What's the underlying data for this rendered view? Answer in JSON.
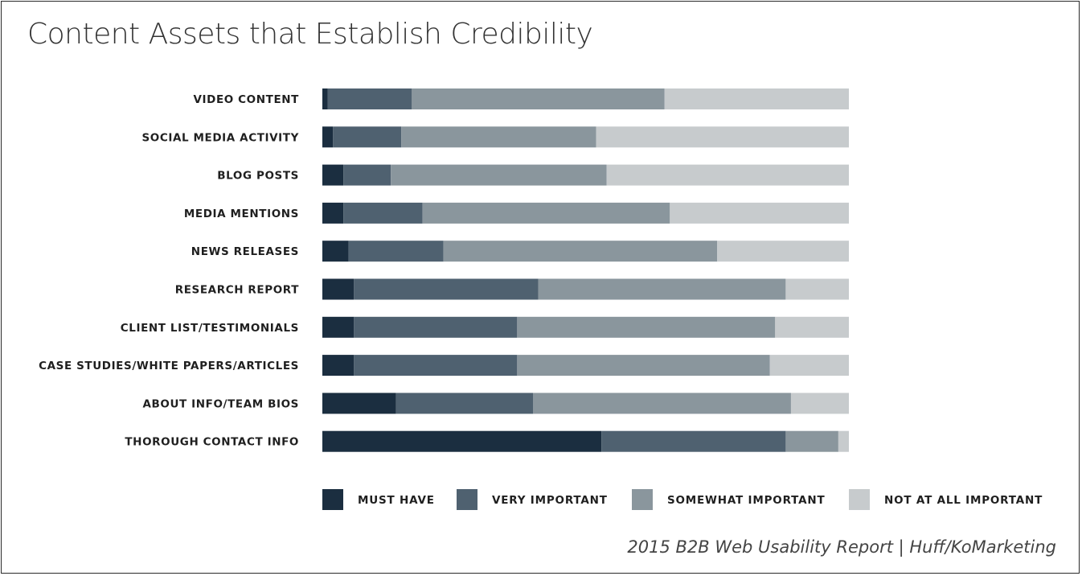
{
  "chart_data": {
    "type": "bar",
    "orientation": "horizontal",
    "stacked": true,
    "title": "Content Assets that Establish Credibility",
    "categories": [
      "VIDEO CONTENT",
      "SOCIAL MEDIA ACTIVITY",
      "BLOG POSTS",
      "MEDIA MENTIONS",
      "NEWS RELEASES",
      "RESEARCH REPORT",
      "CLIENT LIST/TESTIMONIALS",
      "CASE STUDIES/WHITE PAPERS/ARTICLES",
      "ABOUT INFO/TEAM BIOS",
      "THOROUGH CONTACT INFO"
    ],
    "series": [
      {
        "name": "MUST HAVE",
        "color": "#1b2e40",
        "values": [
          1,
          2,
          4,
          4,
          5,
          6,
          6,
          6,
          14,
          53
        ]
      },
      {
        "name": "VERY IMPORTANT",
        "color": "#4f6170",
        "values": [
          16,
          13,
          9,
          15,
          18,
          35,
          31,
          31,
          26,
          35
        ]
      },
      {
        "name": "SOMEWHAT IMPORTANT",
        "color": "#8a969d",
        "values": [
          48,
          37,
          41,
          47,
          52,
          47,
          49,
          48,
          49,
          10
        ]
      },
      {
        "name": "NOT AT ALL IMPORTANT",
        "color": "#c7cbcd",
        "values": [
          35,
          48,
          46,
          34,
          25,
          12,
          14,
          15,
          11,
          2
        ]
      }
    ],
    "xlim": [
      0,
      100
    ],
    "grid": false,
    "legend_position": "bottom"
  },
  "source": "2015 B2B Web Usability Report | Huff/KoMarketing"
}
